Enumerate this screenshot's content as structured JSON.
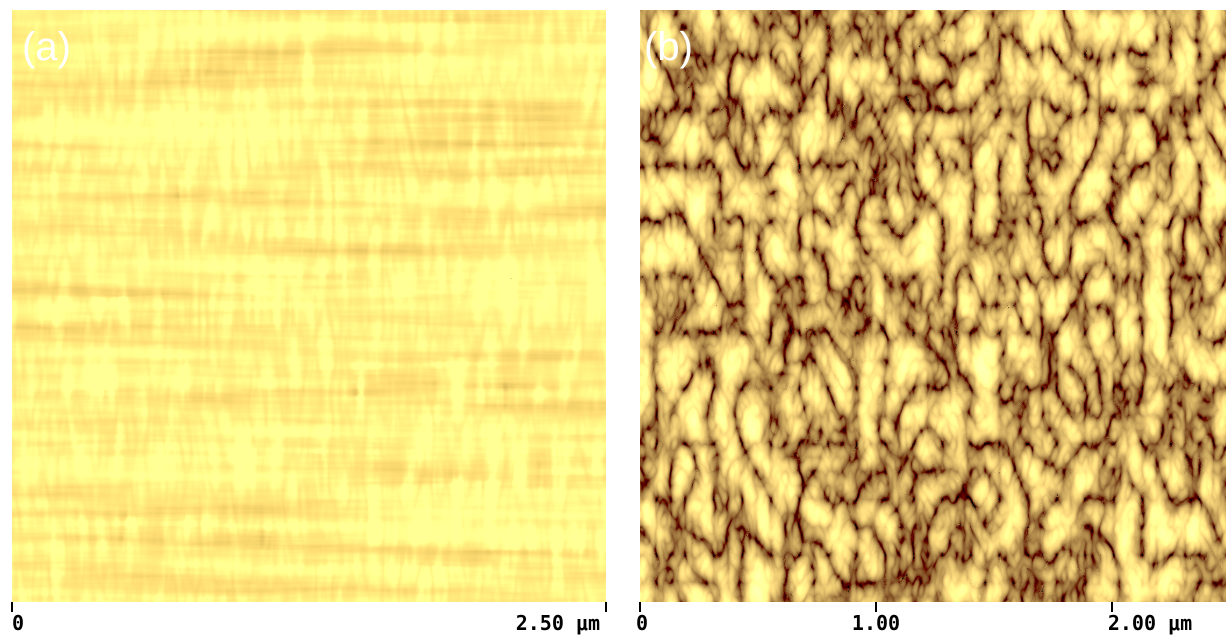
{
  "panels": [
    {
      "label": "(a)",
      "ticks": [
        "0",
        "2.50 μm"
      ]
    },
    {
      "label": "(b)",
      "ticks": [
        "0",
        "1.00",
        "2.00 μm"
      ]
    }
  ]
}
